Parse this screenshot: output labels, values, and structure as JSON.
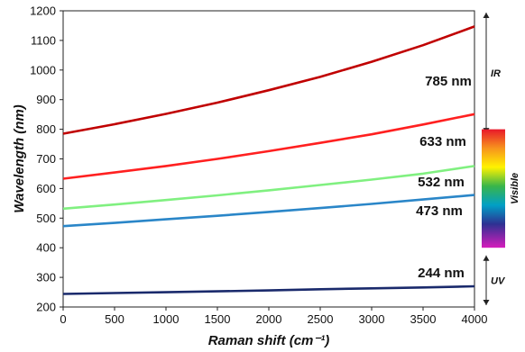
{
  "chart_data": {
    "type": "line",
    "xlabel": "Raman shift (cm⁻¹)",
    "ylabel": "Wavelength (nm)",
    "xlim": [
      0,
      4000
    ],
    "ylim": [
      200,
      1200
    ],
    "xticks": [
      0,
      500,
      1000,
      1500,
      2000,
      2500,
      3000,
      3500,
      4000
    ],
    "yticks": [
      200,
      300,
      400,
      500,
      600,
      700,
      800,
      900,
      1000,
      1100,
      1200
    ],
    "grid": false,
    "x": [
      0,
      500,
      1000,
      1500,
      2000,
      2500,
      3000,
      3500,
      4000
    ],
    "series": [
      {
        "name": "785 nm",
        "color": "#c00000",
        "values": [
          785,
          817,
          852,
          890,
          932,
          977,
          1028,
          1084,
          1147
        ]
      },
      {
        "name": "633 nm",
        "color": "#ff2020",
        "values": [
          633,
          654,
          676,
          700,
          726,
          754,
          783,
          816,
          851
        ]
      },
      {
        "name": "532 nm",
        "color": "#80f080",
        "values": [
          532,
          546,
          561,
          577,
          594,
          612,
          630,
          650,
          676
        ]
      },
      {
        "name": "473 nm",
        "color": "#2a86c8",
        "values": [
          473,
          484,
          496,
          508,
          521,
          534,
          548,
          563,
          578
        ]
      },
      {
        "name": "244 nm",
        "color": "#1a2a6c",
        "values": [
          244,
          247,
          250,
          253,
          256,
          260,
          263,
          266,
          270
        ]
      }
    ],
    "regions": [
      {
        "label": "IR",
        "from": 780,
        "to": 1200
      },
      {
        "label": "Visible",
        "from": 400,
        "to": 800
      },
      {
        "label": "UV",
        "from": 200,
        "to": 380
      }
    ]
  }
}
